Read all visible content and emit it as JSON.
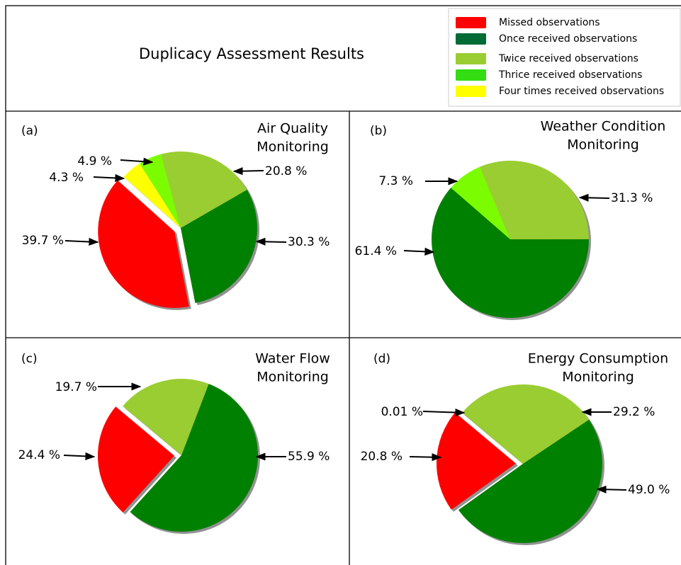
{
  "title": "Duplicacy Assessment Results",
  "legend": [
    {
      "name": "Missed observations",
      "color": "#ff0000"
    },
    {
      "name": "Once received observations",
      "color": "#006b35"
    },
    {
      "name": "Twice received observations",
      "color": "#9acd32"
    },
    {
      "name": "Thrice received observations",
      "color": "#33dd11"
    },
    {
      "name": "Four times received observations",
      "color": "#ffff00"
    }
  ],
  "chart_data": [
    {
      "type": "pie",
      "panel": "(a)",
      "title": [
        "Air Quality",
        "Monitoring"
      ],
      "values": [
        39.7,
        30.3,
        20.8,
        4.9,
        4.3
      ],
      "value_labels": [
        "39.7 %",
        "30.3 %",
        "20.8 %",
        "4.9 %",
        "4.3 %"
      ],
      "colors": [
        "#ff0000",
        "#008000",
        "#9acd32",
        "#7cfc00",
        "#ffff00"
      ],
      "explode": [
        true,
        false,
        false,
        false,
        false
      ],
      "startangle": 138,
      "shadow": true
    },
    {
      "type": "pie",
      "panel": "(b)",
      "title": [
        "Weather Condition",
        "Monitoring"
      ],
      "values": [
        61.4,
        31.3,
        7.3
      ],
      "value_labels": [
        "61.4 %",
        "31.3 %",
        "7.3 %"
      ],
      "colors": [
        "#008000",
        "#9acd32",
        "#7cfc00"
      ],
      "explode": [
        false,
        false,
        false
      ],
      "startangle": 139,
      "shadow": true
    },
    {
      "type": "pie",
      "panel": "(c)",
      "title": [
        "Water Flow",
        "Monitoring"
      ],
      "values": [
        24.4,
        55.9,
        19.7
      ],
      "value_labels": [
        "24.4 %",
        "55.9 %",
        "19.7 %"
      ],
      "colors": [
        "#ff0000",
        "#008000",
        "#9acd32"
      ],
      "explode": [
        true,
        false,
        false
      ],
      "startangle": 140,
      "shadow": true
    },
    {
      "type": "pie",
      "panel": "(d)",
      "title": [
        "Energy Consumption",
        "Monitoring"
      ],
      "values": [
        20.8,
        49.0,
        29.2,
        0.01
      ],
      "value_labels": [
        "20.8 %",
        "49.0 %",
        "29.2 %",
        "0.01 %"
      ],
      "colors": [
        "#ff0000",
        "#008000",
        "#9acd32",
        "#7cfc00"
      ],
      "explode": [
        true,
        false,
        false,
        false
      ],
      "startangle": 140,
      "shadow": true
    }
  ]
}
